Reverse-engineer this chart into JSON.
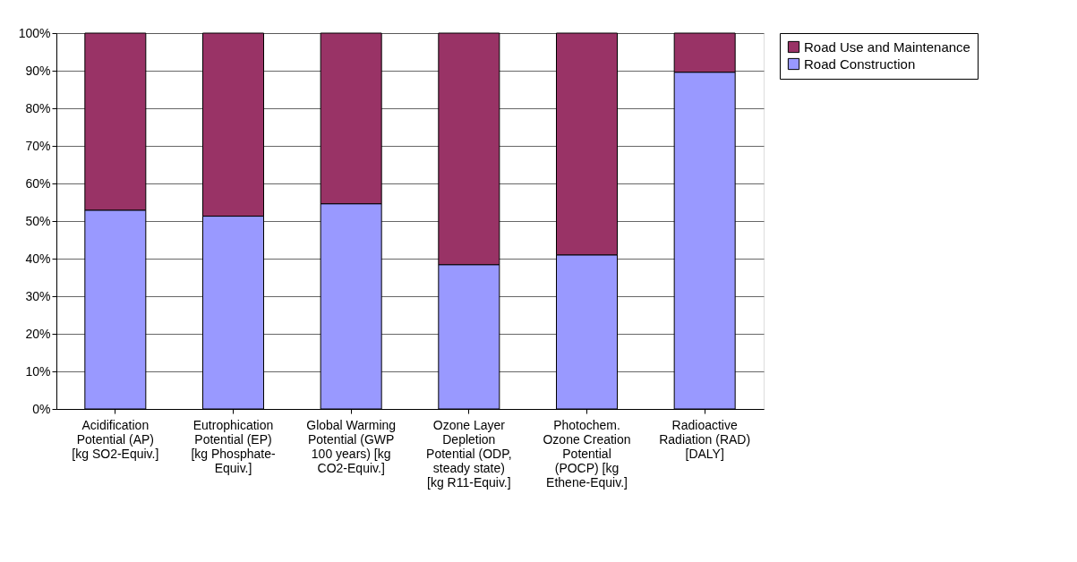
{
  "chart_data": {
    "type": "bar",
    "stacked": true,
    "categories": [
      "Acidification Potential (AP) [kg SO2-Equiv.]",
      "Eutrophication Potential (EP) [kg Phosphate-Equiv.]",
      "Global Warming Potential (GWP 100 years) [kg CO2-Equiv.]",
      "Ozone Layer Depletion Potential (ODP, steady state) [kg R11-Equiv.]",
      "Photochem. Ozone Creation Potential (POCP) [kg Ethene-Equiv.]",
      "Radioactive Radiation (RAD) [DALY]"
    ],
    "series": [
      {
        "name": "Road Construction",
        "color": "#9999ff",
        "values": [
          52.9,
          51.3,
          54.6,
          38.4,
          41.0,
          89.6
        ]
      },
      {
        "name": "Road Use and Maintenance",
        "color": "#993366",
        "values": [
          47.1,
          48.7,
          45.4,
          61.6,
          59.0,
          10.4
        ]
      }
    ],
    "ylim": [
      0,
      100
    ],
    "yticks": [
      {
        "value": 0,
        "label": "0%"
      },
      {
        "value": 10,
        "label": "10%"
      },
      {
        "value": 20,
        "label": "20%"
      },
      {
        "value": 30,
        "label": "30%"
      },
      {
        "value": 40,
        "label": "40%"
      },
      {
        "value": 50,
        "label": "50%"
      },
      {
        "value": 60,
        "label": "60%"
      },
      {
        "value": 70,
        "label": "70%"
      },
      {
        "value": 80,
        "label": "80%"
      },
      {
        "value": 90,
        "label": "90%"
      },
      {
        "value": 100,
        "label": "100%"
      }
    ],
    "grid": "y",
    "legend": "right"
  }
}
